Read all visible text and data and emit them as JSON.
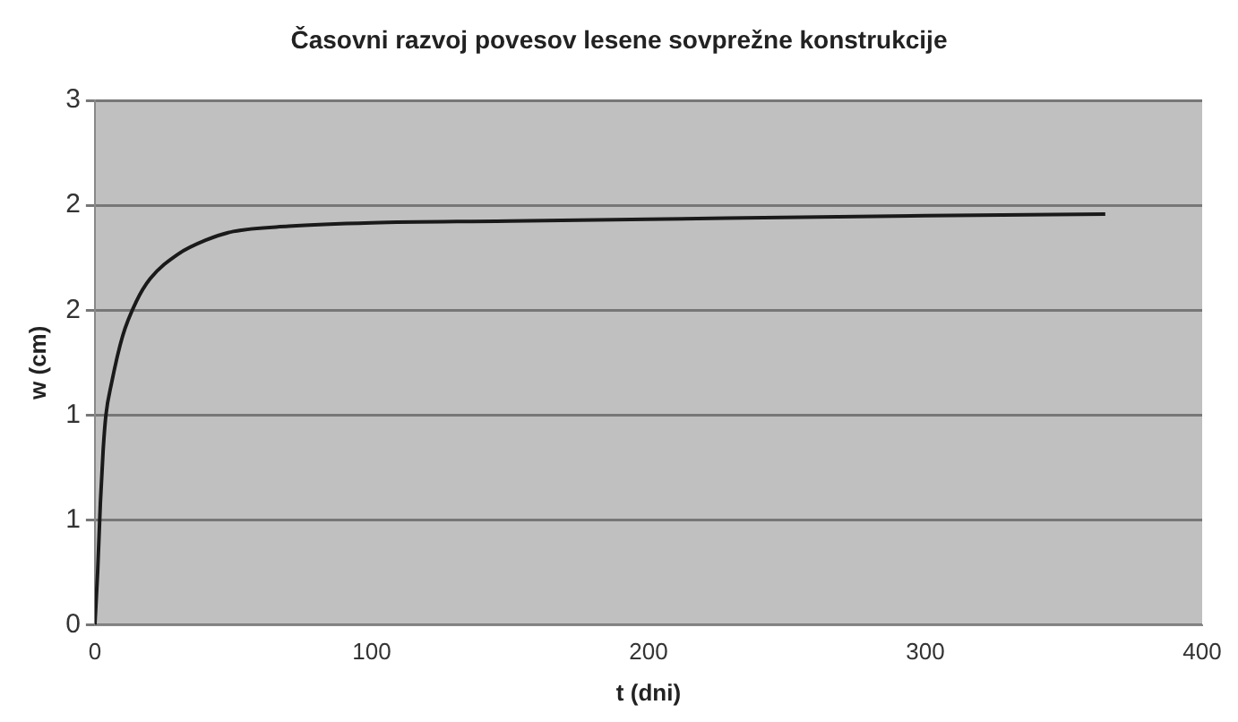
{
  "chart_data": {
    "type": "line",
    "title": "Časovni razvoj povesov lesene sovprežne konstrukcije",
    "xlabel": "t (dni)",
    "ylabel": "w (cm)",
    "x": [
      0,
      1,
      2,
      3,
      4,
      6,
      10,
      15,
      20,
      30,
      40,
      50,
      70,
      100,
      150,
      200,
      300,
      365
    ],
    "series": [
      {
        "color": "#1a1a1a",
        "values": [
          0,
          0.3,
          0.7,
          1.0,
          1.2,
          1.38,
          1.65,
          1.85,
          1.98,
          2.12,
          2.2,
          2.25,
          2.28,
          2.3,
          2.31,
          2.32,
          2.34,
          2.35
        ]
      }
    ],
    "xlim": [
      0,
      400
    ],
    "xticks": [
      0,
      100,
      200,
      300,
      400
    ],
    "ylim": [
      0,
      3
    ],
    "yticks": [
      0,
      {
        "value": 0.6,
        "label": "1"
      },
      {
        "value": 1.2,
        "label": "1"
      },
      {
        "value": 1.8,
        "label": "2"
      },
      {
        "value": 2.4,
        "label": "2"
      },
      3
    ],
    "grid": "y",
    "legend": false,
    "marker": "none",
    "line_style": "solid"
  }
}
